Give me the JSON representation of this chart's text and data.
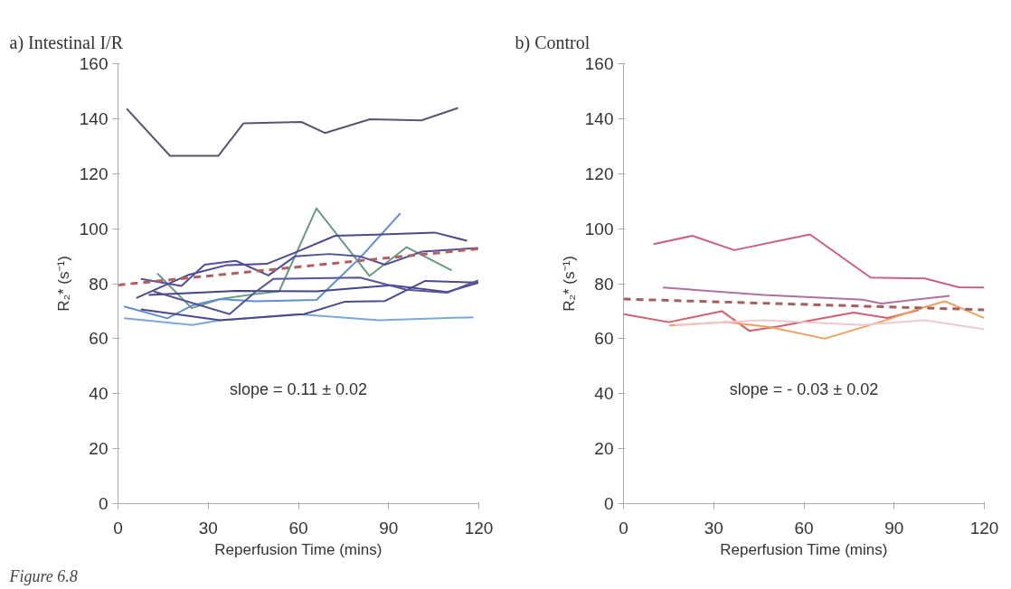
{
  "chart_data": [
    {
      "type": "line",
      "title": "a) Intestinal I/R",
      "xlabel": "Reperfusion Time (mins)",
      "ylabel": "R₂* (s⁻¹)",
      "xlim": [
        0,
        120
      ],
      "xticks": [
        0,
        30,
        60,
        90,
        120
      ],
      "ylim": [
        0,
        160
      ],
      "yticks": [
        0,
        20,
        40,
        60,
        80,
        100,
        120,
        140,
        160
      ],
      "annotations": [
        "slope = 0.11 ± 0.02",
        "Figure 6.8"
      ],
      "series": [
        {
          "color": "#5a5470",
          "x": [
            2.9,
            17.3,
            33.4,
            41.7,
            61,
            68.8,
            83.8,
            100.9,
            113.1
          ],
          "values": [
            143.6,
            126.5,
            126.5,
            138.3,
            138.8,
            134.8,
            139.8,
            139.4,
            143.9
          ]
        },
        {
          "color": "#6a9a80",
          "x": [
            13.1,
            24.5,
            34,
            44.8,
            53.6,
            66,
            73.3,
            83.6,
            96,
            111
          ],
          "values": [
            83.7,
            71.1,
            74.4,
            76.1,
            77.2,
            107.4,
            97.2,
            82.8,
            93.3,
            84.8
          ]
        },
        {
          "color": "#5f8fd0",
          "x": [
            2,
            16.4,
            24.7,
            34,
            45.4,
            66,
            80.5,
            93.9
          ],
          "values": [
            71.7,
            67.4,
            72.1,
            74.4,
            73.6,
            74.1,
            89.4,
            105.6
          ]
        },
        {
          "color": "#7aa8d8",
          "x": [
            2,
            24.7,
            34,
            59.8,
            86.7,
            118.2
          ],
          "values": [
            67.4,
            65,
            66.7,
            68.9,
            66.7,
            67.8
          ]
        },
        {
          "color": "#4a4a8c",
          "x": [
            7.6,
            34,
            61.9,
            75.3,
            88.8,
            102.2,
            119.8
          ],
          "values": [
            70.6,
            66.7,
            68.9,
            73.4,
            73.7,
            81,
            80.4
          ]
        },
        {
          "color": "#4a4a8c",
          "x": [
            6.1,
            23.7,
            36,
            49.5,
            59.8,
            72.2,
            85.6,
            105.3,
            116.1
          ],
          "values": [
            74.8,
            83.3,
            86.7,
            87.2,
            91.7,
            97.4,
            97.8,
            98.6,
            95.6
          ]
        },
        {
          "color": "#50509a",
          "x": [
            7.6,
            21.1,
            28.8,
            39.2,
            50,
            58.8,
            70.2,
            80.5,
            88.8,
            101.2,
            119.8
          ],
          "values": [
            81.7,
            79.2,
            86.9,
            88.3,
            83,
            89.9,
            90.8,
            89.9,
            86.9,
            91.7,
            93
          ]
        },
        {
          "color": "#45458a",
          "x": [
            10.2,
            39.2,
            66,
            90.8,
            109.5,
            119.8
          ],
          "values": [
            75.9,
            77.4,
            77.2,
            79.4,
            77,
            80.3
          ]
        },
        {
          "color": "#55559a",
          "x": [
            11.8,
            37.1,
            45.4,
            51.6,
            80.5,
            96,
            109.5,
            119.8
          ],
          "values": [
            77.2,
            68.9,
            76.7,
            81.7,
            82.2,
            77.8,
            76.7,
            81.2
          ]
        },
        {
          "color": "#b06060",
          "line_style": "dashed",
          "x": [
            0,
            120
          ],
          "values": [
            79.5,
            92.7
          ]
        }
      ]
    },
    {
      "type": "line",
      "title": "b) Control",
      "xlabel": "Reperfusion Time (mins)",
      "ylabel": "R₂* (s⁻¹)",
      "xlim": [
        0,
        120
      ],
      "xticks": [
        0,
        30,
        60,
        90,
        120
      ],
      "ylim": [
        0,
        160
      ],
      "yticks": [
        0,
        20,
        40,
        60,
        80,
        100,
        120,
        140,
        160
      ],
      "annotations": [
        "slope = - 0.03 ± 0.02"
      ],
      "series": [
        {
          "color": "#c8607e",
          "x": [
            10,
            22.9,
            36.8,
            62,
            82.2,
            100.2,
            111.6,
            120
          ],
          "values": [
            94.4,
            97.4,
            92.2,
            97.9,
            82.2,
            81.9,
            78.7,
            78.6
          ]
        },
        {
          "color": "#b070a0",
          "x": [
            13.1,
            46.6,
            79.6,
            85.8,
            108.5
          ],
          "values": [
            78.6,
            75.9,
            74.2,
            72.8,
            75.6
          ]
        },
        {
          "color": "#d06070",
          "x": [
            0,
            15.1,
            32.7,
            41.9,
            51.2,
            76.5,
            87.8,
            98.1
          ],
          "values": [
            68.9,
            66,
            70,
            62.8,
            64.4,
            69.5,
            67.5,
            70.4
          ]
        },
        {
          "color": "#f0a060",
          "x": [
            15.2,
            34.2,
            48.6,
            67,
            87.8,
            98.1,
            106.9,
            120
          ],
          "values": [
            64.8,
            66,
            64.2,
            60,
            66.9,
            70.8,
            73.6,
            67.5
          ]
        },
        {
          "color": "#f0c8d0",
          "x": [
            17.2,
            46.6,
            79.6,
            100.2,
            120
          ],
          "values": [
            65,
            66.7,
            65,
            66.7,
            63.4
          ]
        },
        {
          "color": "#a06060",
          "line_style": "dashed",
          "x": [
            0,
            120
          ],
          "values": [
            74.4,
            70.5
          ]
        }
      ]
    }
  ]
}
